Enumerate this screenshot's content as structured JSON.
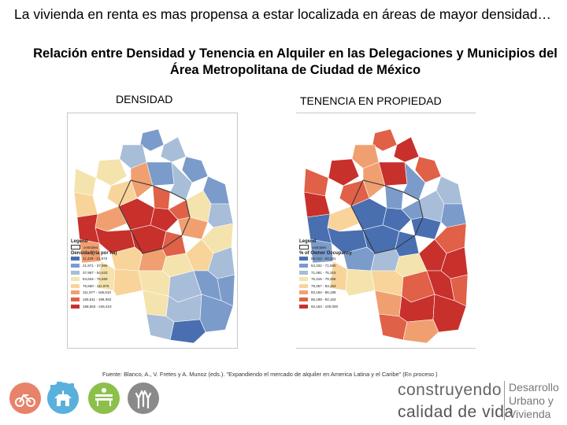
{
  "heading": "La vivienda en renta es mas propensa a estar localizada en áreas de mayor densidad…",
  "subtitle": "Relación entre Densidad y Tenencia en Alquiler en las Delegaciones y Municipios del Área Metropolitana de Ciudad de México",
  "maps": [
    {
      "label": "DENSIDAD",
      "legend_title": "Legend",
      "legend_boundary": "centrales",
      "legend_subtitle": "Densidad(ria por ha)",
      "legend_rows": [
        {
          "text": "11,429 - 21,970",
          "color": "#4a6fb0"
        },
        {
          "text": "21,971 - 37,956",
          "color": "#7b9bcb"
        },
        {
          "text": "37,957 - 54,633",
          "color": "#a7bdd8"
        },
        {
          "text": "54,634 - 76,559",
          "color": "#f4e3ad"
        },
        {
          "text": "76,560 - 111,976",
          "color": "#f8d49a"
        },
        {
          "text": "111,977 - 165,610",
          "color": "#f0a070"
        },
        {
          "text": "165,611 - 188,062",
          "color": "#e06048"
        },
        {
          "text": "188,063 - 246,410",
          "color": "#c8302c"
        }
      ]
    },
    {
      "label": "TENENCIA EN PROPIEDAD",
      "legend_title": "Legend",
      "legend_boundary": "centrales",
      "legend_subtitle": "% of Owner Occupancy",
      "legend_rows": [
        {
          "text": "55,412 - 64,331",
          "color": "#4a6fb0"
        },
        {
          "text": "64,332 - 71,080",
          "color": "#7b9bcb"
        },
        {
          "text": "71,081 - 76,315",
          "color": "#a7bdd8"
        },
        {
          "text": "76,316 - 79,356",
          "color": "#f4e3ad"
        },
        {
          "text": "79,357 - 83,193",
          "color": "#f8d49a"
        },
        {
          "text": "83,194 - 86,198",
          "color": "#f0a070"
        },
        {
          "text": "86,199 - 92,153",
          "color": "#e06048"
        },
        {
          "text": "92,154 - 100,000",
          "color": "#c8302c"
        }
      ]
    }
  ],
  "source": "Fuente: Blanco, A., V. Fretes y A. Munoz (eds.). \"Expandiendo el mercado de alquiler en America Latina y el Caribe\" (En proceso )",
  "footer": {
    "icons": [
      {
        "name": "bicycle",
        "color": "#e8826a"
      },
      {
        "name": "house",
        "color": "#5ab0dc"
      },
      {
        "name": "city-buildings",
        "color": "#5ab0dc"
      },
      {
        "name": "park-bench",
        "color": "#8cc04a"
      },
      {
        "name": "raised-hands",
        "color": "#8a8a8a"
      }
    ],
    "brand_line1": "construyendo",
    "brand_line2": "calidad de vida",
    "brand_right": [
      "Desarrollo",
      "Urbano y",
      "Vivienda"
    ]
  }
}
